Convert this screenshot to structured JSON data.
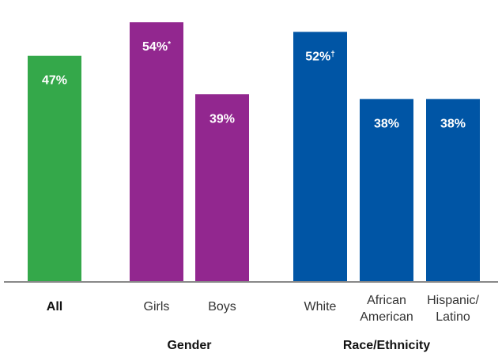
{
  "chart_data": {
    "type": "bar",
    "categories": [
      "All",
      "Girls",
      "Boys",
      "White",
      "African American",
      "Hispanic/ Latino"
    ],
    "category_lines": [
      [
        "All"
      ],
      [
        "Girls"
      ],
      [
        "Boys"
      ],
      [
        "White"
      ],
      [
        "African",
        "American"
      ],
      [
        "Hispanic/",
        "Latino"
      ]
    ],
    "values": [
      47,
      54,
      39,
      52,
      38,
      38
    ],
    "value_labels": [
      "47%",
      "54%",
      "39%",
      "52%",
      "38%",
      "38%"
    ],
    "value_marks": [
      "",
      "*",
      "",
      "†",
      "",
      ""
    ],
    "bar_colors": [
      "#34a84a",
      "#92278f",
      "#92278f",
      "#0055a5",
      "#0055a5",
      "#0055a5"
    ],
    "groups": [
      {
        "label": "Gender",
        "members": [
          1,
          2
        ]
      },
      {
        "label": "Race/Ethnicity",
        "members": [
          3,
          4,
          5
        ]
      }
    ],
    "ylim": [
      0,
      57
    ],
    "grid": false,
    "baseline_color": "#888888"
  }
}
